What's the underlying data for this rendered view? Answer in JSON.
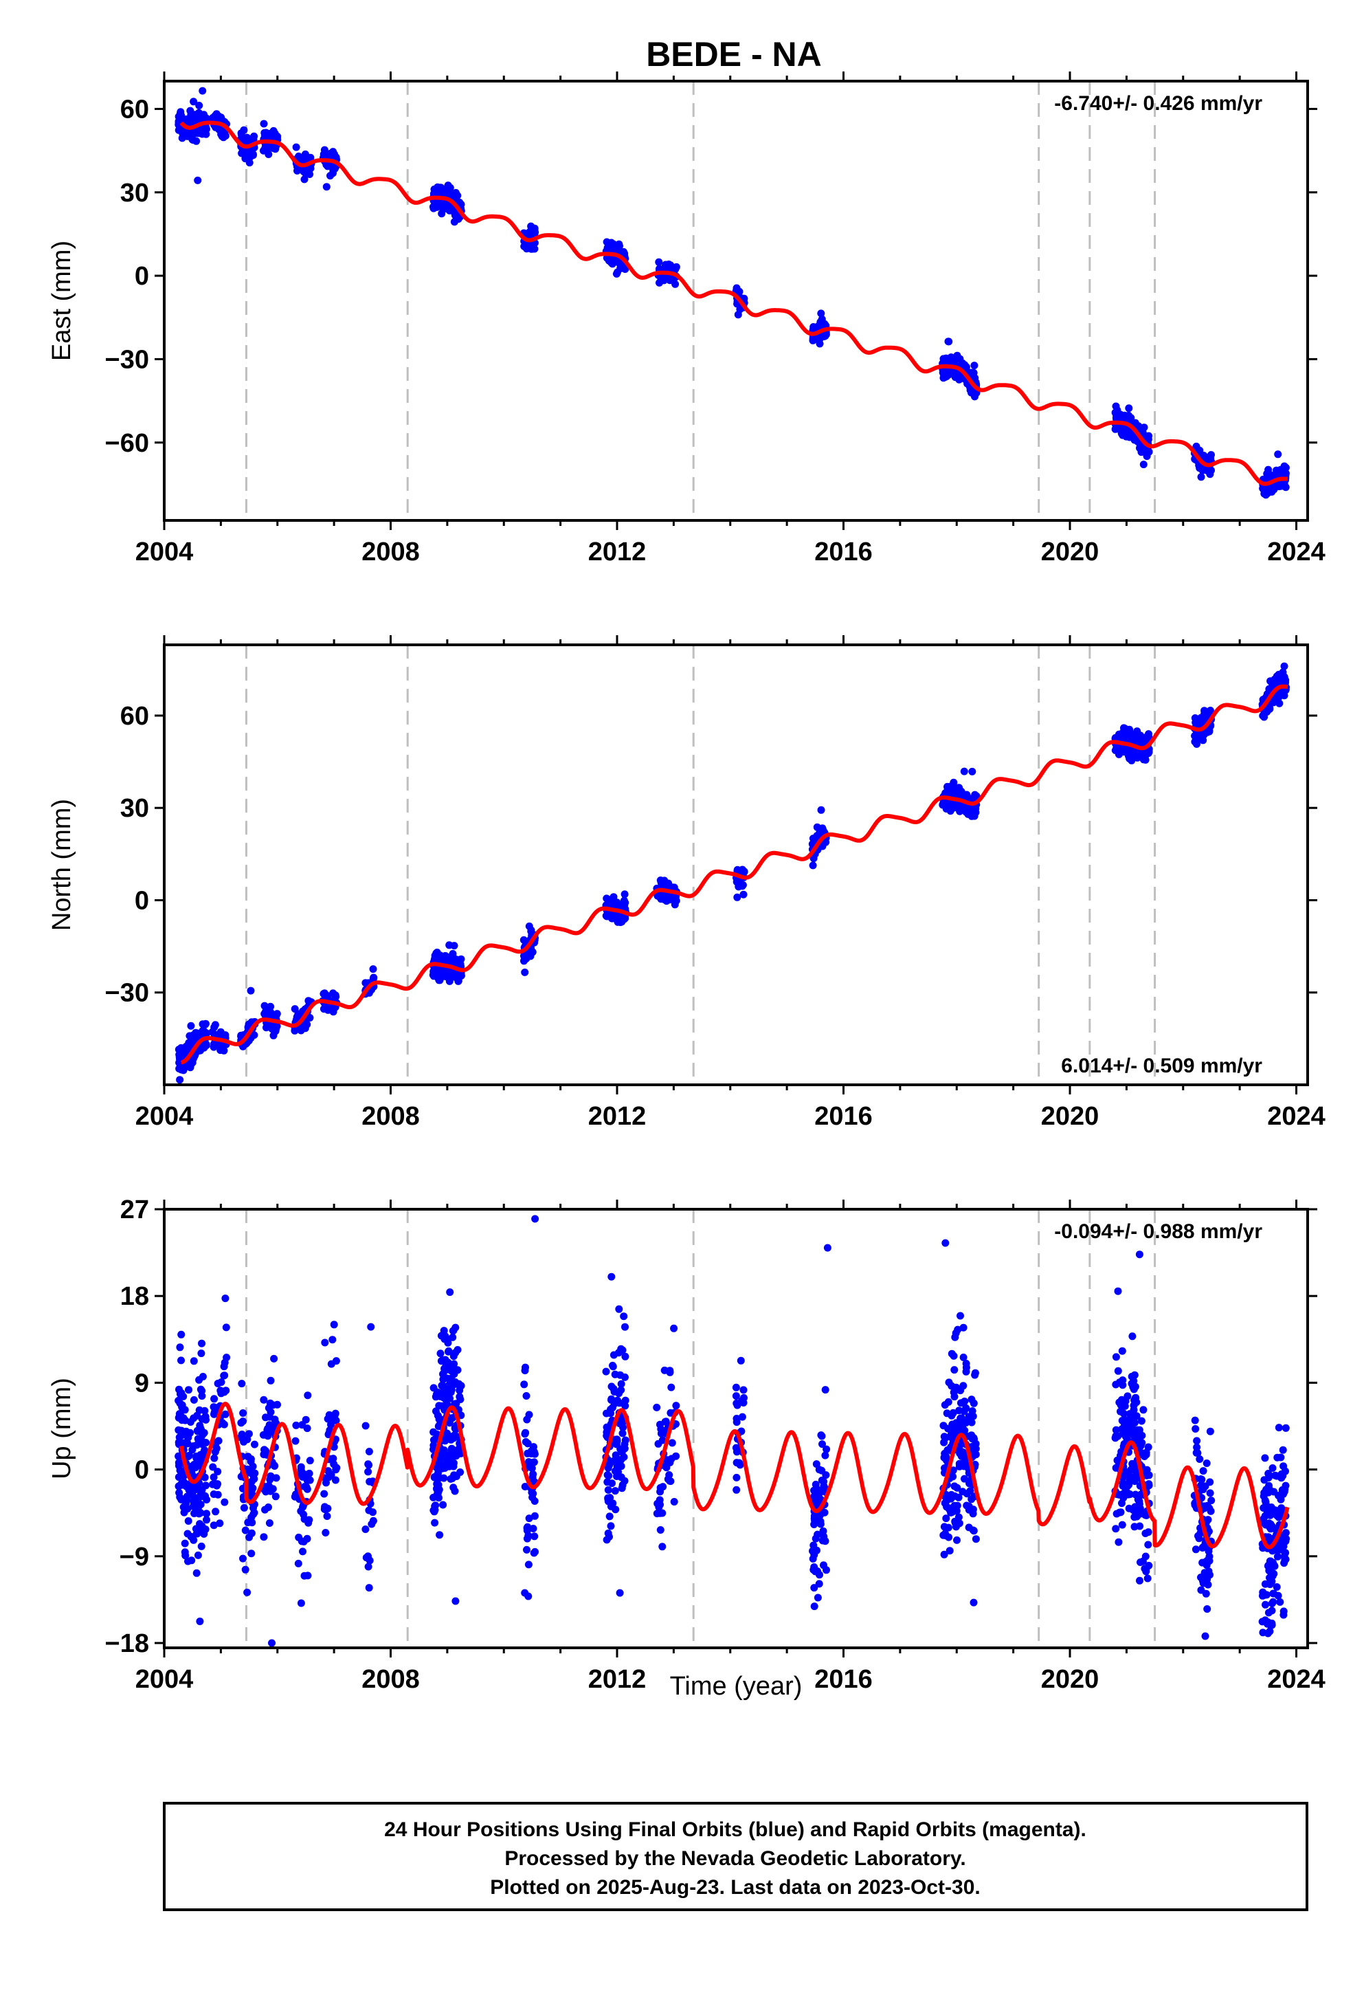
{
  "chart_data": {
    "type": "scatter",
    "title": "BEDE - NA",
    "xlabel": "Time (year)",
    "xlim": [
      2004.0,
      2024.2
    ],
    "xticks": [
      2004,
      2008,
      2012,
      2016,
      2020,
      2024
    ],
    "xtick_labels": [
      "2004",
      "2008",
      "2012",
      "2016",
      "2020",
      "2024"
    ],
    "vlines": [
      2005.45,
      2008.3,
      2013.35,
      2019.45,
      2020.35,
      2021.5
    ],
    "legend": "none",
    "grid": false,
    "colors": {
      "observations": "#0000ff",
      "model": "#ff0000",
      "vlines": "#bfbfbf"
    },
    "panels": [
      {
        "name": "east",
        "ylabel": "East (mm)",
        "ylim": [
          -88,
          70
        ],
        "yticks": [
          60,
          30,
          0,
          -30,
          -60
        ],
        "ytick_labels": [
          "60",
          "30",
          "0",
          "−30",
          "−60"
        ],
        "rate_label": "-6.740+/- 0.426 mm/yr",
        "rate_position": "top-right",
        "trend": {
          "slope": -6.74,
          "ref_year": 2004.3,
          "ref_value": 57.0,
          "annual_amp": 2.5,
          "annual_phase": 2.0,
          "semiannual_amp": 0.5
        },
        "noise_sd": 1.8,
        "outlier_sd": 6,
        "offsets": [],
        "clusters": [
          [
            2004.25,
            2004.75,
            200
          ],
          [
            2004.85,
            2005.1,
            45
          ],
          [
            2005.35,
            2005.6,
            60
          ],
          [
            2005.75,
            2006.0,
            50
          ],
          [
            2006.3,
            2006.6,
            45
          ],
          [
            2006.8,
            2007.05,
            40
          ],
          [
            2008.75,
            2009.25,
            200
          ],
          [
            2010.35,
            2010.55,
            50
          ],
          [
            2011.8,
            2012.15,
            100
          ],
          [
            2012.7,
            2013.05,
            55
          ],
          [
            2014.1,
            2014.25,
            25
          ],
          [
            2015.45,
            2015.7,
            70
          ],
          [
            2017.75,
            2018.35,
            200
          ],
          [
            2020.8,
            2021.4,
            200
          ],
          [
            2022.2,
            2022.5,
            80
          ],
          [
            2023.4,
            2023.82,
            150
          ]
        ]
      },
      {
        "name": "north",
        "ylabel": "North (mm)",
        "ylim": [
          -60,
          83
        ],
        "yticks": [
          60,
          30,
          0,
          -30
        ],
        "ytick_labels": [
          "60",
          "30",
          "0",
          "−30"
        ],
        "rate_label": "6.014+/- 0.509 mm/yr",
        "rate_position": "bottom-right",
        "trend": {
          "slope": 6.014,
          "ref_year": 2004.3,
          "ref_value": -50.0,
          "annual_amp": 2.5,
          "annual_phase": 3.0,
          "semiannual_amp": 0.5
        },
        "noise_sd": 1.8,
        "outlier_sd": 6,
        "offsets": [],
        "clusters": [
          [
            2004.25,
            2004.75,
            200
          ],
          [
            2004.85,
            2005.1,
            45
          ],
          [
            2005.35,
            2005.6,
            60
          ],
          [
            2005.75,
            2006.0,
            50
          ],
          [
            2006.3,
            2006.6,
            45
          ],
          [
            2006.8,
            2007.05,
            40
          ],
          [
            2007.55,
            2007.7,
            20
          ],
          [
            2008.75,
            2009.25,
            200
          ],
          [
            2010.35,
            2010.55,
            50
          ],
          [
            2011.8,
            2012.15,
            100
          ],
          [
            2012.7,
            2013.05,
            55
          ],
          [
            2014.1,
            2014.25,
            25
          ],
          [
            2015.45,
            2015.7,
            70
          ],
          [
            2017.75,
            2018.35,
            200
          ],
          [
            2020.8,
            2021.4,
            200
          ],
          [
            2022.2,
            2022.5,
            80
          ],
          [
            2023.4,
            2023.82,
            150
          ]
        ]
      },
      {
        "name": "up",
        "ylabel": "Up (mm)",
        "ylim": [
          -18.5,
          27
        ],
        "yticks": [
          27,
          18,
          9,
          0,
          -9,
          -18
        ],
        "ytick_labels": [
          "27",
          "18",
          "9",
          "0",
          "−9",
          "−18"
        ],
        "rate_label": "-0.094+/- 0.988 mm/yr",
        "rate_position": "top-right",
        "trend": {
          "slope": -0.094,
          "ref_year": 2004.3,
          "ref_value": 2.5,
          "annual_amp": 4.0,
          "annual_phase": 1.2,
          "semiannual_amp": 0.5
        },
        "noise_sd": 4.5,
        "outlier_sd": 9,
        "offsets": [
          [
            2005.45,
            -2.0
          ],
          [
            2008.3,
            2.0
          ],
          [
            2013.35,
            -2.0
          ],
          [
            2019.45,
            -1.0
          ],
          [
            2020.35,
            0.5
          ],
          [
            2021.5,
            -2.5
          ]
        ],
        "clusters": [
          [
            2004.25,
            2004.75,
            200
          ],
          [
            2004.85,
            2005.1,
            45
          ],
          [
            2005.35,
            2005.6,
            60
          ],
          [
            2005.75,
            2006.0,
            50
          ],
          [
            2006.3,
            2006.6,
            45
          ],
          [
            2006.8,
            2007.05,
            40
          ],
          [
            2007.55,
            2007.7,
            20
          ],
          [
            2008.75,
            2009.25,
            200
          ],
          [
            2010.35,
            2010.55,
            50
          ],
          [
            2011.8,
            2012.15,
            100
          ],
          [
            2012.7,
            2013.05,
            55
          ],
          [
            2014.1,
            2014.25,
            25
          ],
          [
            2015.45,
            2015.7,
            70
          ],
          [
            2017.75,
            2018.35,
            200
          ],
          [
            2020.8,
            2021.4,
            200
          ],
          [
            2022.2,
            2022.5,
            80
          ],
          [
            2023.4,
            2023.82,
            150
          ]
        ],
        "extra_points": [
          [
            2010.55,
            26.0
          ],
          [
            2011.9,
            20.0
          ],
          [
            2015.72,
            23.0
          ],
          [
            2017.8,
            23.5
          ],
          [
            2020.85,
            18.5
          ],
          [
            2004.3,
            14.0
          ],
          [
            2007.65,
            14.8
          ],
          [
            2005.9,
            -18.0
          ],
          [
            2012.05,
            -12.8
          ],
          [
            2018.3,
            -13.8
          ],
          [
            2023.5,
            -17.0
          ]
        ]
      }
    ]
  },
  "footer": {
    "lines": [
      "24 Hour Positions Using Final Orbits (blue) and Rapid Orbits (magenta).",
      "Processed by the Nevada Geodetic Laboratory.",
      "Plotted on 2025-Aug-23. Last data on 2023-Oct-30."
    ]
  }
}
